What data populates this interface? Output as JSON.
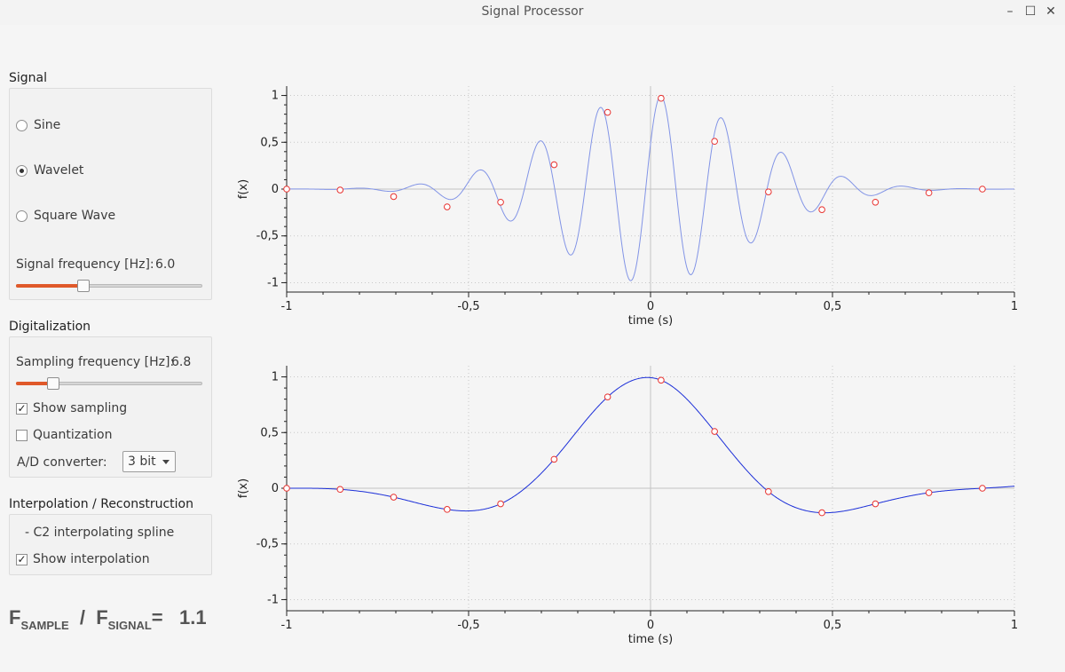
{
  "window": {
    "title": "Signal Processor",
    "minimize": "–",
    "maximize": "☐",
    "close": "✕"
  },
  "signal": {
    "section_title": "Signal",
    "options": [
      {
        "label": "Sine",
        "selected": false
      },
      {
        "label": "Wavelet",
        "selected": true
      },
      {
        "label": "Square Wave",
        "selected": false
      }
    ],
    "frequency_label": "Signal frequency [Hz]:",
    "frequency_value": "6.0",
    "slider_fraction": 0.36
  },
  "digitalization": {
    "section_title": "Digitalization",
    "sampling_label": "Sampling frequency [Hz]:",
    "sampling_value": "6.8",
    "slider_fraction": 0.2,
    "show_sampling_label": "Show sampling",
    "show_sampling_checked": true,
    "quantization_label": "Quantization",
    "quantization_checked": false,
    "ad_label": "A/D converter:",
    "ad_value": "3 bit"
  },
  "interpolation": {
    "section_title": "Interpolation / Reconstruction",
    "method": "- C2 interpolating spline",
    "show_interpolation_label": "Show interpolation",
    "show_interpolation_checked": true
  },
  "ratio": {
    "f1": "F",
    "sub1": "SAMPLE",
    "slash": "/",
    "f2": "F",
    "sub2": "SIGNAL",
    "eq": "=",
    "value": "1.1"
  },
  "chart_data": [
    {
      "type": "line",
      "xlabel": "time (s)",
      "ylabel": "f(x)",
      "xlim": [
        -1,
        1
      ],
      "ylim": [
        -1.1,
        1.1
      ],
      "xticks": [
        "-1",
        "-0,5",
        "0",
        "0,5",
        "1"
      ],
      "yticks": [
        "-1",
        "-0,5",
        "0",
        "0,5",
        "1"
      ],
      "grid": true,
      "signal_frequency_hz": 6.0,
      "line_color": "#8294e6",
      "sample_color": "#e8322f",
      "samples": {
        "x": [
          -1.0,
          -0.853,
          -0.706,
          -0.559,
          -0.412,
          -0.265,
          -0.118,
          0.029,
          0.176,
          0.324,
          0.471,
          0.618,
          0.765,
          0.912
        ],
        "y": [
          0.0,
          -0.01,
          -0.08,
          -0.19,
          -0.14,
          0.26,
          0.82,
          0.97,
          0.51,
          -0.03,
          -0.22,
          -0.14,
          -0.04,
          0.0
        ]
      }
    },
    {
      "type": "line",
      "xlabel": "time (s)",
      "ylabel": "f(x)",
      "xlim": [
        -1,
        1
      ],
      "ylim": [
        -1.1,
        1.1
      ],
      "xticks": [
        "-1",
        "-0,5",
        "0",
        "0,5",
        "1"
      ],
      "yticks": [
        "-1",
        "-0,5",
        "0",
        "0,5",
        "1"
      ],
      "grid": true,
      "line_color": "#1c2fd8",
      "sample_color": "#e8322f",
      "samples": {
        "x": [
          -1.0,
          -0.853,
          -0.706,
          -0.559,
          -0.412,
          -0.265,
          -0.118,
          0.029,
          0.176,
          0.324,
          0.471,
          0.618,
          0.765,
          0.912
        ],
        "y": [
          0.0,
          -0.01,
          -0.08,
          -0.19,
          -0.14,
          0.26,
          0.82,
          0.97,
          0.51,
          -0.03,
          -0.22,
          -0.14,
          -0.04,
          0.0
        ]
      }
    }
  ]
}
